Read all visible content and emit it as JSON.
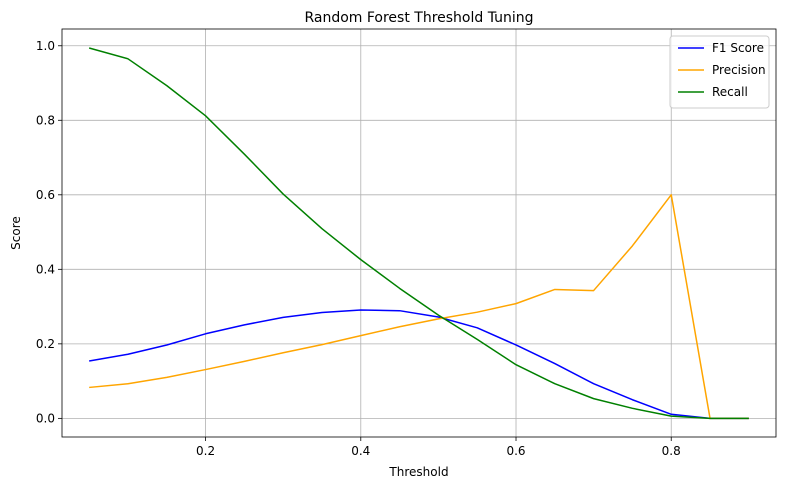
{
  "chart_data": {
    "type": "line",
    "title": "Random Forest Threshold Tuning",
    "xlabel": "Threshold",
    "ylabel": "Score",
    "xlim": [
      0.015,
      0.935
    ],
    "ylim": [
      -0.05,
      1.045
    ],
    "xticks": [
      0.2,
      0.4,
      0.6,
      0.8
    ],
    "xtick_labels": [
      "0.2",
      "0.4",
      "0.6",
      "0.8"
    ],
    "yticks": [
      0.0,
      0.2,
      0.4,
      0.6,
      0.8,
      1.0
    ],
    "ytick_labels": [
      "0.0",
      "0.2",
      "0.4",
      "0.6",
      "0.8",
      "1.0"
    ],
    "grid": true,
    "legend_position": "top-right",
    "x": [
      0.05,
      0.1,
      0.15,
      0.2,
      0.25,
      0.3,
      0.35,
      0.4,
      0.45,
      0.5,
      0.55,
      0.6,
      0.65,
      0.7,
      0.75,
      0.8,
      0.85,
      0.9
    ],
    "series": [
      {
        "name": "F1 Score",
        "color": "#0000ff",
        "values": [
          0.154,
          0.172,
          0.197,
          0.227,
          0.251,
          0.271,
          0.284,
          0.291,
          0.289,
          0.272,
          0.243,
          0.197,
          0.147,
          0.093,
          0.05,
          0.011,
          0.0,
          0.0
        ]
      },
      {
        "name": "Precision",
        "color": "#ffa500",
        "values": [
          0.083,
          0.093,
          0.11,
          0.131,
          0.153,
          0.176,
          0.198,
          0.222,
          0.246,
          0.267,
          0.285,
          0.308,
          0.346,
          0.343,
          0.463,
          0.6,
          0.0,
          0.0
        ]
      },
      {
        "name": "Recall",
        "color": "#008000",
        "values": [
          0.994,
          0.965,
          0.893,
          0.812,
          0.709,
          0.602,
          0.509,
          0.426,
          0.349,
          0.277,
          0.212,
          0.144,
          0.093,
          0.053,
          0.027,
          0.006,
          0.0,
          0.0
        ]
      }
    ]
  }
}
